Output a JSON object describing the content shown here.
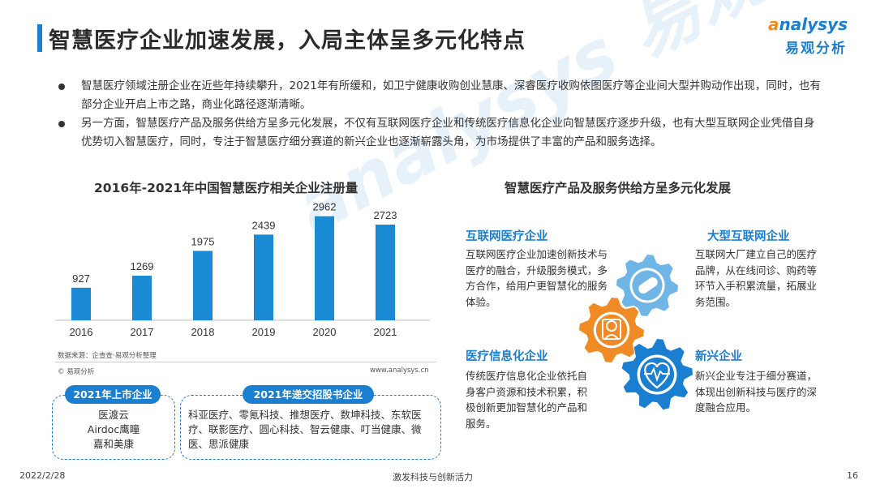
{
  "header": {
    "title": "智慧医疗企业加速发展，入局主体呈多元化特点",
    "logo_en_a": "a",
    "logo_en_rest": "nalysys",
    "logo_cn": "易观分析"
  },
  "bullets": [
    "智慧医疗领域注册企业在近些年持续攀升，2021年有所缓和，如卫宁健康收购创业慧康、深睿医疗收购依图医疗等企业间大型并购动作出现，同时，也有部分企业开启上市之路，商业化路径逐渐清晰。",
    "另一方面，智慧医疗产品及服务供给方呈多元化发展，不仅有互联网医疗企业和传统医疗信息化企业向智慧医疗逐步升级，也有大型互联网企业凭借自身优势切入智慧医疗，同时，专注于智慧医疗细分赛道的新兴企业也逐渐崭露头角，为市场提供了丰富的产品和服务选择。"
  ],
  "chart_data": {
    "type": "bar",
    "title": "2016年-2021年中国智慧医疗相关企业注册量",
    "categories": [
      "2016",
      "2017",
      "2018",
      "2019",
      "2020",
      "2021"
    ],
    "values": [
      927,
      1269,
      1975,
      2439,
      2962,
      2723
    ],
    "xlabel": "",
    "ylabel": "",
    "color": "#1a8ad4",
    "grid": false
  },
  "source": {
    "line1": "数据来源：企查查·易观分析整理",
    "line2": "© 易观分析",
    "url": "www.analysys.cn"
  },
  "listed": {
    "label": "2021年上市企业",
    "items": [
      "医渡云",
      "Airdoc鹰瞳",
      "嘉和美康"
    ]
  },
  "ipo": {
    "label": "2021年递交招股书企业",
    "text": "科亚医疗、零氪科技、推想医疗、数坤科技、东软医疗、联影医疗、圆心科技、智云健康、叮当健康、微医、思派健康"
  },
  "right": {
    "title": "智慧医疗产品及服务供给方呈多元化发展",
    "categories": [
      {
        "title": "互联网医疗企业",
        "text": "互联网医疗企业加速创新技术与医疗的融合，升级服务模式，多方合作，给用户更智慧化的服务体验。"
      },
      {
        "title": "大型互联网企业",
        "text": "互联网大厂建立自己的医疗品牌，从在线问诊、购药等环节入手积累流量，拓展业务范围。"
      },
      {
        "title": "医疗信息化企业",
        "text": "传统医疗信息化企业依托自身客户资源和技术积累，积极创新更加智慧化的产品和服务。"
      },
      {
        "title": "新兴企业",
        "text": "新兴企业专注于细分赛道，体现出创新科技与医疗的深度融合应用。"
      }
    ],
    "gear_colors": {
      "light": "#6fb6e6",
      "orange": "#f08a24",
      "blue": "#1a7fd1"
    }
  },
  "footer": {
    "date": "2022/2/28",
    "center": "激发科技与创新活力",
    "page": "16"
  }
}
